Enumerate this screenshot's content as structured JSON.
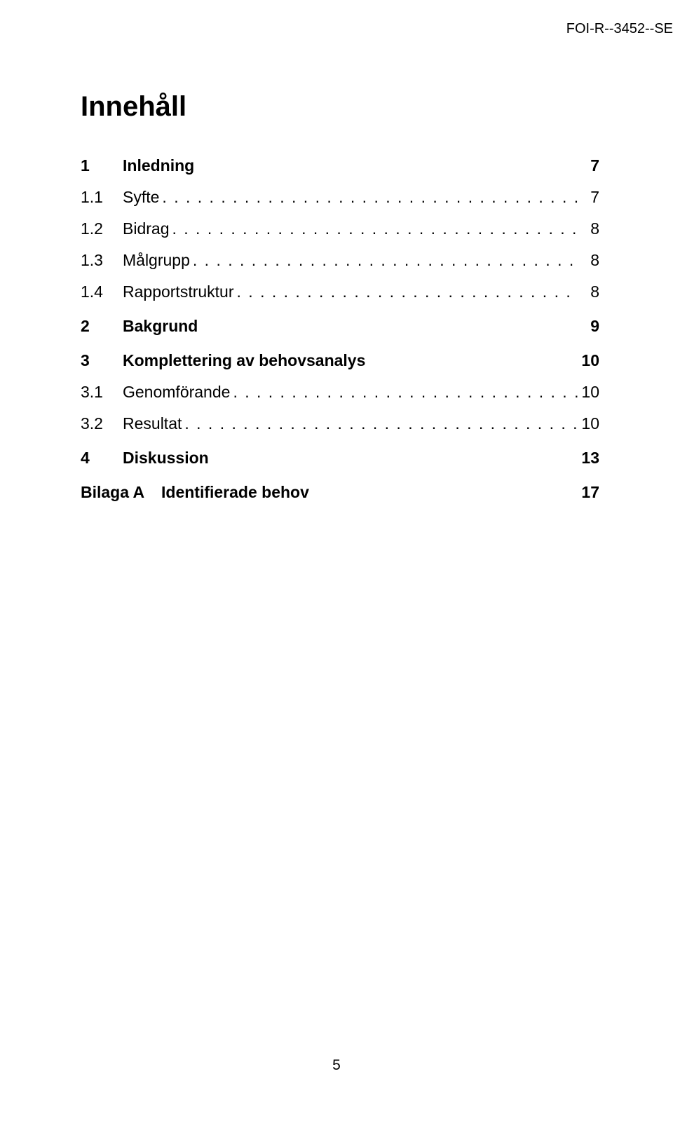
{
  "header": {
    "doc_id": "FOI-R--3452--SE"
  },
  "title": "Innehåll",
  "toc": [
    {
      "num": "1",
      "label": "Inledning",
      "page": "7",
      "bold": true,
      "dots": false,
      "spaced": false
    },
    {
      "num": "1.1",
      "label": "Syfte",
      "page": "7",
      "bold": false,
      "dots": true,
      "spaced": false
    },
    {
      "num": "1.2",
      "label": "Bidrag",
      "page": "8",
      "bold": false,
      "dots": true,
      "spaced": false
    },
    {
      "num": "1.3",
      "label": "Målgrupp",
      "page": "8",
      "bold": false,
      "dots": true,
      "spaced": false
    },
    {
      "num": "1.4",
      "label": "Rapportstruktur",
      "page": "8",
      "bold": false,
      "dots": true,
      "spaced": false
    },
    {
      "num": "2",
      "label": "Bakgrund",
      "page": "9",
      "bold": true,
      "dots": false,
      "spaced": true
    },
    {
      "num": "3",
      "label": "Komplettering av behovsanalys",
      "page": "10",
      "bold": true,
      "dots": false,
      "spaced": true
    },
    {
      "num": "3.1",
      "label": "Genomförande",
      "page": "10",
      "bold": false,
      "dots": true,
      "spaced": false
    },
    {
      "num": "3.2",
      "label": "Resultat",
      "page": "10",
      "bold": false,
      "dots": true,
      "spaced": false
    },
    {
      "num": "4",
      "label": "Diskussion",
      "page": "13",
      "bold": true,
      "dots": false,
      "spaced": true
    },
    {
      "num": "Bilaga A",
      "label": "Identifierade behov",
      "page": "17",
      "bold": true,
      "dots": false,
      "spaced": true,
      "wideNum": true
    }
  ],
  "page_number": "5",
  "dot_fill": ". . . . . . . . . . . . . . . . . . . . . . . . . . . . . . . . . . . . . . . . . . . . . . . . . . . . . . . . . . . . . . . . . . . . . . . . . . . . . . . . . . . . . . . . . . . . . . . . . . . . . . . . . . . . . . . . . . . . . . . ."
}
